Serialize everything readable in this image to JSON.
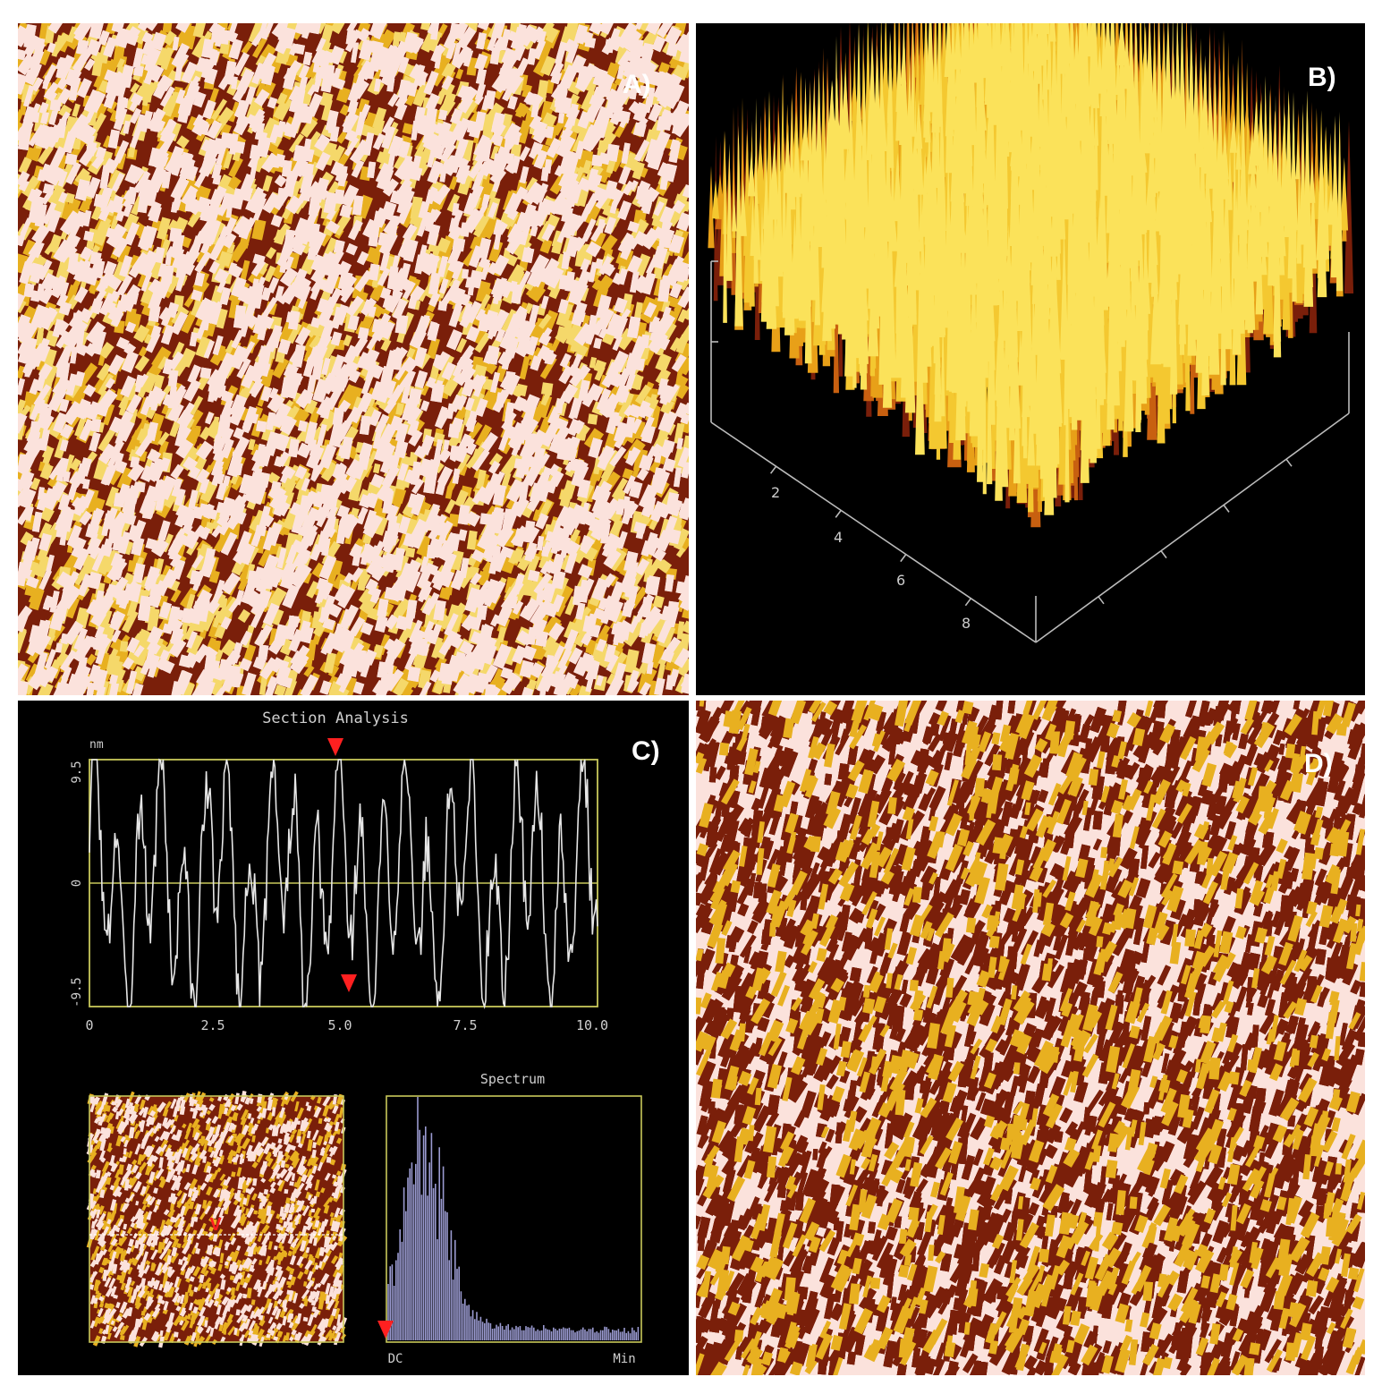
{
  "panels": {
    "a": {
      "label": "A)"
    },
    "b": {
      "label": "B)",
      "axis_ticks": [
        "2",
        "4",
        "6",
        "8"
      ]
    },
    "c": {
      "label": "C)"
    },
    "d": {
      "label": "D)"
    }
  },
  "section_analysis": {
    "title": "Section Analysis",
    "y_unit": "nm",
    "y_ticks": [
      "9.5",
      "0",
      "-9.5"
    ],
    "x_ticks": [
      "0",
      "2.5",
      "5.0",
      "7.5",
      "10.0"
    ],
    "marker_label": "V"
  },
  "spectrum": {
    "title": "Spectrum",
    "x_left": "DC",
    "x_right": "Min"
  },
  "colors": {
    "afm_dark": "#7a1f0a",
    "afm_gold": "#e8b020",
    "afm_light": "#fbe2dc",
    "plot_frame": "#c8c85a",
    "profile_line": "#e6e6e6",
    "marker": "#ff2020",
    "spectrum_bar": "#9a9ad0"
  }
}
